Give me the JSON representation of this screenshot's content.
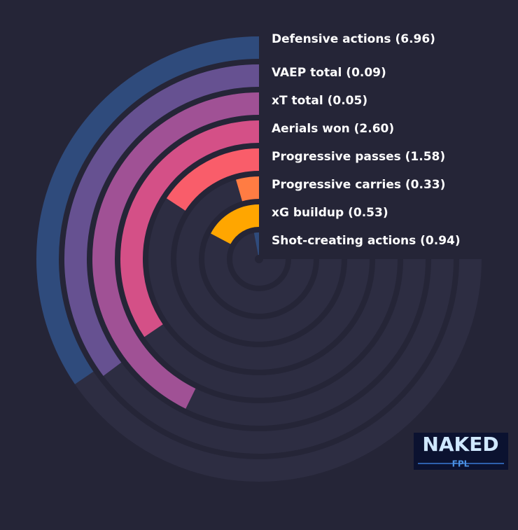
{
  "chart_data": {
    "type": "radial-bar",
    "categories": [
      "Defensive actions (6.96)",
      "VAEP total (0.09)",
      "xT total (0.05)",
      "Aerials won (2.60)",
      "Progressive passes (1.58)",
      "Progressive carries (0.33)",
      "xG buildup (0.53)",
      "Shot-creating actions (0.94)"
    ],
    "values": [
      46,
      47,
      57,
      46,
      21,
      6,
      23,
      4
    ],
    "colors": [
      "#2f4b7c",
      "#665191",
      "#a05195",
      "#d45087",
      "#f95d6a",
      "#ff7c43",
      "#ffa600",
      "#2f4b7c"
    ],
    "ylim": [
      0,
      100
    ]
  },
  "logo": {
    "title": "NAKED",
    "subtitle": "FPL"
  }
}
